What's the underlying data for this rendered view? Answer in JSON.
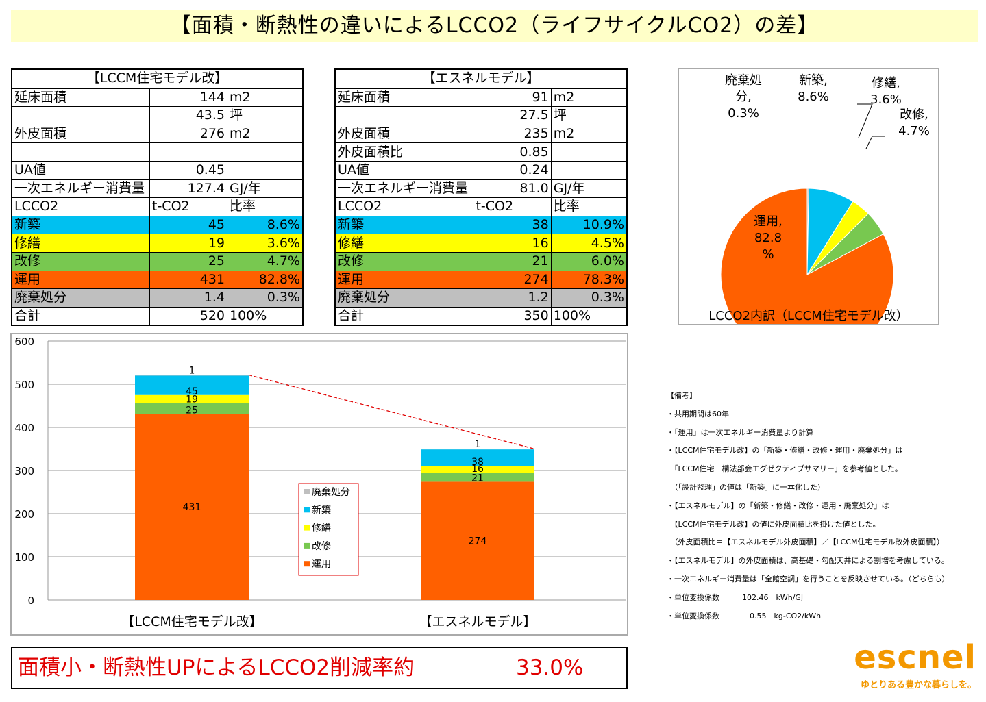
{
  "title": "【面積・断熱性の違いによるLCCO2（ライフサイクルCO2）の差】",
  "colors": {
    "haiki": "#bfbfbf",
    "shinchiku": "#00c0f0",
    "shuzen": "#ffff00",
    "kaishu": "#78c850",
    "unyo": "#ff6000",
    "title_bg": "#ffffc8",
    "banner_text": "#e00000",
    "logo": "#f39800"
  },
  "table1": {
    "heading": "【LCCM住宅モデル改】",
    "rows": [
      [
        "延床面積",
        "144",
        "m2"
      ],
      [
        "",
        "43.5",
        "坪"
      ],
      [
        "外皮面積",
        "276",
        "m2"
      ],
      [
        "",
        "",
        ""
      ],
      [
        "UA値",
        "0.45",
        ""
      ],
      [
        "一次エネルギー消費量",
        "127.4",
        "GJ/年"
      ],
      [
        "LCCO2",
        "t-CO2",
        "比率"
      ],
      [
        "新築",
        "45",
        "8.6%"
      ],
      [
        "修繕",
        "19",
        "3.6%"
      ],
      [
        "改修",
        "25",
        "4.7%"
      ],
      [
        "運用",
        "431",
        "82.8%"
      ],
      [
        "廃棄処分",
        "1.4",
        "0.3%"
      ],
      [
        "合計",
        "520",
        "100%"
      ]
    ]
  },
  "table2": {
    "heading": "【エスネルモデル】",
    "rows": [
      [
        "延床面積",
        "91",
        "m2"
      ],
      [
        "",
        "27.5",
        "坪"
      ],
      [
        "外皮面積",
        "235",
        "m2"
      ],
      [
        "外皮面積比",
        "0.85",
        ""
      ],
      [
        "UA値",
        "0.24",
        ""
      ],
      [
        "一次エネルギー消費量",
        "81.0",
        "GJ/年"
      ],
      [
        "LCCO2",
        "t-CO2",
        "比率"
      ],
      [
        "新築",
        "38",
        "10.9%"
      ],
      [
        "修繕",
        "16",
        "4.5%"
      ],
      [
        "改修",
        "21",
        "6.0%"
      ],
      [
        "運用",
        "274",
        "78.3%"
      ],
      [
        "廃棄処分",
        "1.2",
        "0.3%"
      ],
      [
        "合計",
        "350",
        "100%"
      ]
    ]
  },
  "chart_data": [
    {
      "type": "pie",
      "title": "LCCO2内訳（LCCM住宅モデル改）",
      "slices": [
        {
          "name": "廃棄処分",
          "value": 0.3,
          "label": [
            "廃棄処",
            "分,",
            "0.3%"
          ]
        },
        {
          "name": "新築",
          "value": 8.6,
          "label": [
            "新築,",
            "8.6%"
          ]
        },
        {
          "name": "修繕",
          "value": 3.6,
          "label": [
            "修繕,",
            "3.6%"
          ]
        },
        {
          "name": "改修",
          "value": 4.7,
          "label": [
            "改修,",
            "4.7%"
          ]
        },
        {
          "name": "運用",
          "value": 82.8,
          "label": [
            "運用,",
            "82.8",
            "%"
          ]
        }
      ]
    },
    {
      "type": "bar",
      "stacked": true,
      "categories": [
        "【LCCM住宅モデル改】",
        "【エスネルモデル】"
      ],
      "series": [
        {
          "name": "運用",
          "values": [
            431,
            274
          ],
          "labels": [
            "431",
            "274"
          ]
        },
        {
          "name": "改修",
          "values": [
            25,
            21
          ],
          "labels": [
            "25",
            "21"
          ]
        },
        {
          "name": "修繕",
          "values": [
            19,
            16
          ],
          "labels": [
            "19",
            "16"
          ]
        },
        {
          "name": "新築",
          "values": [
            45,
            38
          ],
          "labels": [
            "45",
            "38"
          ]
        },
        {
          "name": "廃棄処分",
          "values": [
            1.4,
            1.2
          ],
          "labels": [
            "1",
            "1"
          ]
        }
      ],
      "legend": [
        "廃棄処分",
        "新築",
        "修繕",
        "改修",
        "運用"
      ],
      "legend_position": "center",
      "ylim": [
        0,
        600
      ],
      "yticks": [
        "0",
        "100",
        "200",
        "300",
        "400",
        "500",
        "600"
      ],
      "xlabel": "",
      "ylabel": "",
      "grid": true,
      "connector": "dashed line linking bar tops"
    }
  ],
  "notes": [
    "【備考】",
    "・共用期間は60年",
    "・「運用」は一次エネルギー消費量より計算",
    "・【LCCM住宅モデル改】の「新築・修繕・改修・運用・廃棄処分」は",
    "　「LCCM住宅　構法部会エグゼクティブサマリー」を参考値とした。",
    "　（「設計監理」の値は「新築」に一本化した）",
    "・【エスネルモデル】の「新築・修繕・改修・運用・廃棄処分」は",
    "　【LCCM住宅モデル改】の値に外皮面積比を掛けた値とした。",
    "　（外皮面積比＝【エスネルモデル外皮面積】／【LCCM住宅モデル改外皮面積】）",
    "・【エスネルモデル】の外皮面積は、高基礎・勾配天井による割増を考慮している。",
    "・一次エネルギー消費量は「全館空調」を行うことを反映させている。（どちらも）",
    "・単位変換係数　　　102.46　kWh/GJ",
    "・単位変換係数　　　　0.55　kg-CO2/kWh"
  ],
  "banner": {
    "label": "面積小・断熱性UPによるLCCO2削減率約",
    "value": "33.0%"
  },
  "logo": {
    "name": "escnel",
    "tagline": "ゆとりある豊かな暮らしを。"
  }
}
